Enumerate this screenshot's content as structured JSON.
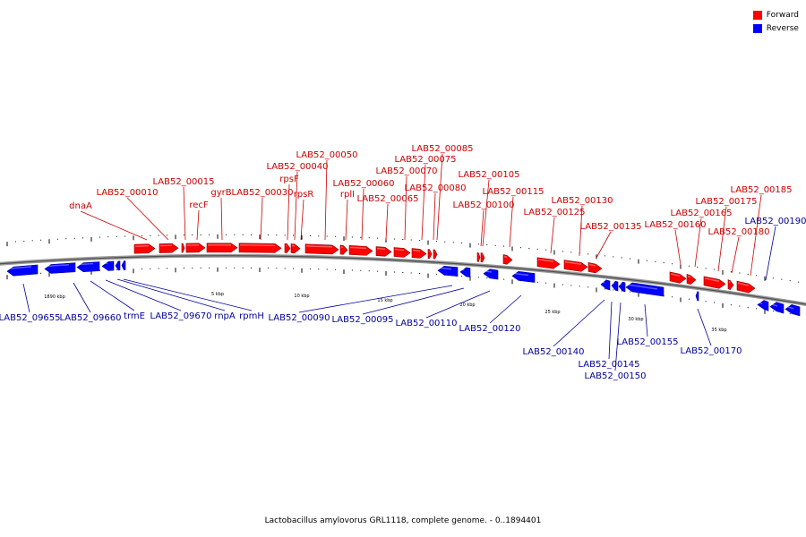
{
  "legend": {
    "forward": {
      "label": "Forward",
      "color": "#ff0000"
    },
    "reverse": {
      "label": "Reverse",
      "color": "#0000ff"
    }
  },
  "caption": "Lactobacillus amylovorus GRL1118, complete genome. - 0..1894401",
  "scale_labels": [
    "1890 kbp",
    "5 kbp",
    "10 kbp",
    "15 kbp",
    "20 kbp",
    "25 kbp",
    "30 kbp",
    "35 kbp"
  ],
  "forward_labels": [
    "dnaA",
    "LAB52_00010",
    "LAB52_00015",
    "recF",
    "gyrB",
    "LAB52_00030",
    "rpsF",
    "LAB52_00040",
    "rpsR",
    "LAB52_00050",
    "rplI",
    "LAB52_00060",
    "LAB52_00065",
    "LAB52_00070",
    "LAB52_00075",
    "LAB52_00080",
    "LAB52_00085",
    "LAB52_00100",
    "LAB52_00105",
    "LAB52_00115",
    "LAB52_00125",
    "LAB52_00130",
    "LAB52_00135",
    "LAB52_00160",
    "LAB52_00165",
    "LAB52_00175",
    "LAB52_00180",
    "LAB52_00185"
  ],
  "reverse_labels": [
    "LAB52_09655",
    "LAB52_09660",
    "trmE",
    "LAB52_09670",
    "rnpA",
    "rpmH",
    "LAB52_00090",
    "LAB52_00095",
    "LAB52_00110",
    "LAB52_00120",
    "LAB52_00140",
    "LAB52_00145",
    "LAB52_00150",
    "LAB52_00155",
    "LAB52_00170",
    "LAB52_00190"
  ]
}
